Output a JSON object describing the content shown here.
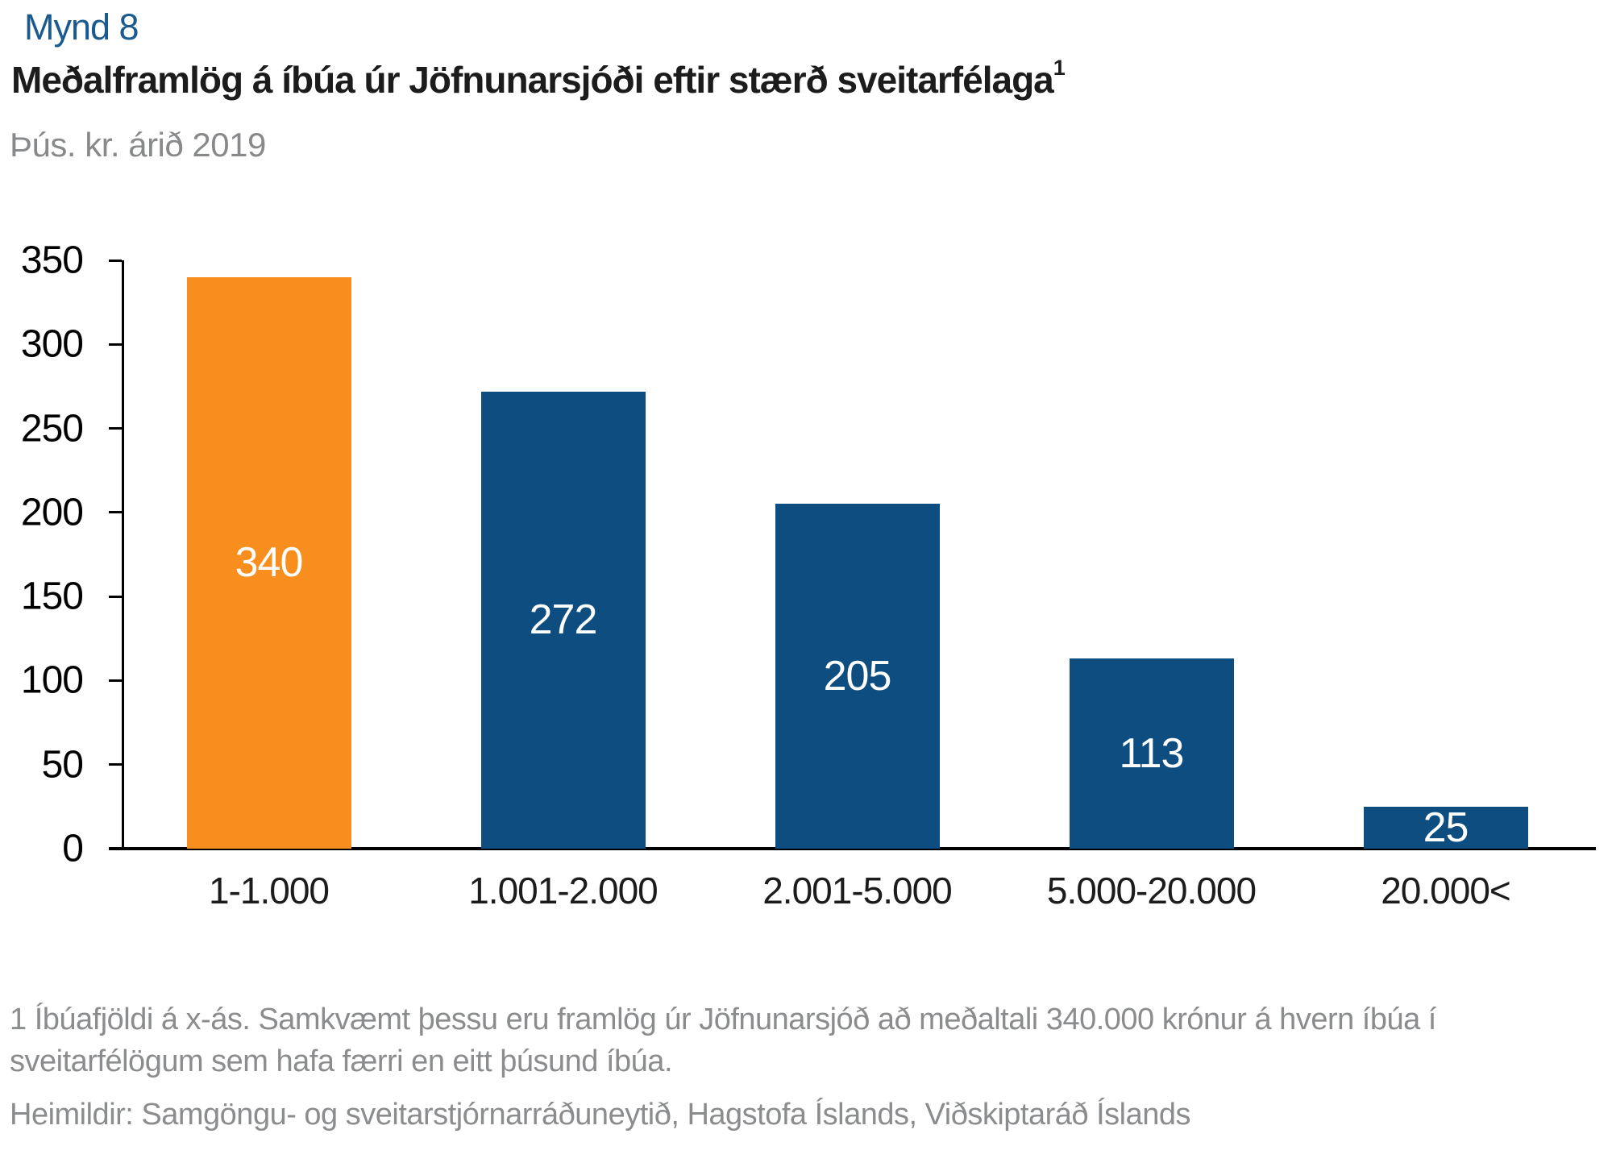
{
  "figure_label": "Mynd 8",
  "title": "Meðalframlög á íbúa úr Jöfnunarsjóði eftir stærð sveitarfélaga",
  "title_superscript": "1",
  "subtitle": "Þús. kr. árið 2019",
  "footnote_lines": [
    "1 Íbúafjöldi á x-ás. Samkvæmt þessu eru framlög úr Jöfnunarsjóð að meðaltali 340.000 krónur á hvern íbúa í",
    "sveitarfélögum sem hafa færri en eitt þúsund íbúa."
  ],
  "sources": "Heimildir: Samgöngu- og sveitarstjórnarráðuneytið, Hagstofa Íslands, Viðskiptaráð Íslands",
  "colors": {
    "highlight_bar": "#F78E1E",
    "bar": "#0E4D80",
    "figure_label_text": "#1B5A8E",
    "subtitle_text": "#87898B",
    "footnote_text": "#8A8C8E",
    "bar_label_text": "#FFFFFF",
    "axis": "#000000"
  },
  "chart_data": {
    "type": "bar",
    "categories": [
      "1-1.000",
      "1.001-2.000",
      "2.001-5.000",
      "5.000-20.000",
      "20.000<"
    ],
    "values": [
      340,
      272,
      205,
      113,
      25
    ],
    "bar_colors": [
      "#F78E1E",
      "#0E4D80",
      "#0E4D80",
      "#0E4D80",
      "#0E4D80"
    ],
    "value_label_position": "inside-center",
    "title": "Meðalframlög á íbúa úr Jöfnunarsjóði eftir stærð sveitarfélaga",
    "unit_label": "Þús. kr. árið 2019",
    "xlabel": "",
    "ylabel": "",
    "ylim": [
      0,
      350
    ],
    "ytick_step": 50,
    "yticks": [
      0,
      50,
      100,
      150,
      200,
      250,
      300,
      350
    ],
    "grid": false,
    "legend": "none"
  }
}
